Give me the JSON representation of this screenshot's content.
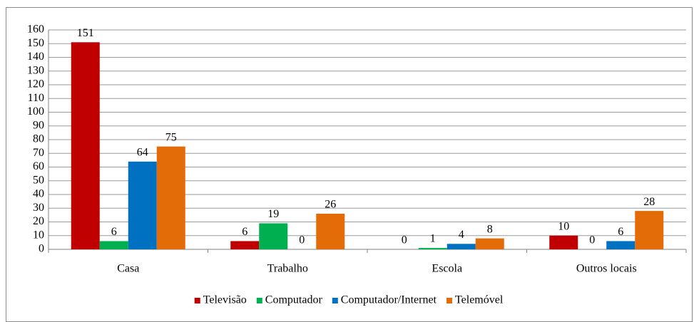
{
  "chart_data": {
    "type": "bar",
    "categories": [
      "Casa",
      "Trabalho",
      "Escola",
      "Outros locais"
    ],
    "series": [
      {
        "name": "Televisão",
        "color": "#c00000",
        "values": [
          151,
          6,
          0,
          10
        ]
      },
      {
        "name": "Computador",
        "color": "#00b050",
        "values": [
          6,
          19,
          1,
          0
        ]
      },
      {
        "name": "Computador/Internet",
        "color": "#0070c0",
        "values": [
          64,
          0,
          4,
          6
        ]
      },
      {
        "name": "Telemóvel",
        "color": "#e36c09",
        "values": [
          75,
          26,
          8,
          28
        ]
      }
    ],
    "ylim": [
      0,
      160
    ],
    "yticks": [
      0,
      10,
      20,
      30,
      40,
      50,
      60,
      70,
      80,
      90,
      100,
      110,
      120,
      130,
      140,
      150,
      160
    ],
    "grid": true,
    "legend": "bottom"
  }
}
